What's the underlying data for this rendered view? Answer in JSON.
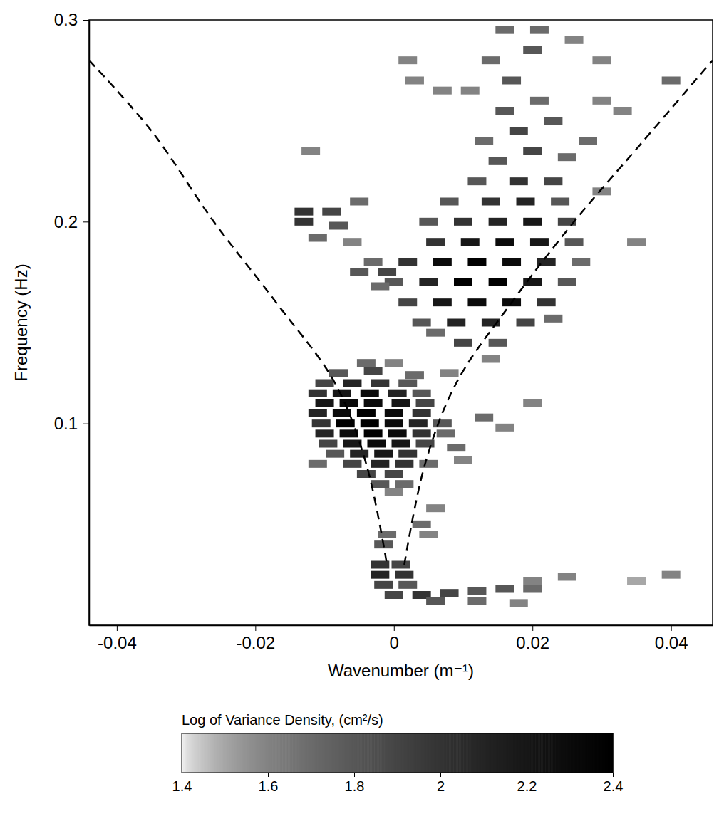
{
  "chart_data": {
    "type": "heatmap",
    "x_label": "Wavenumber (m⁻¹)",
    "y_label": "Frequency (Hz)",
    "xlim": [
      -0.044,
      0.046
    ],
    "ylim": [
      0,
      0.3
    ],
    "xticks": [
      -0.04,
      -0.02,
      0,
      0.02,
      0.04
    ],
    "yticks": [
      0.1,
      0.2,
      0.3
    ],
    "colorbar": {
      "label": "Log of Variance Density, (cm²/s)",
      "range": [
        1.4,
        2.4
      ],
      "ticks": [
        1.4,
        1.6,
        1.8,
        2,
        2.2,
        2.4
      ]
    },
    "cells": [
      [
        -0.004,
        0.13,
        1.7
      ],
      [
        0.0,
        0.13,
        1.6
      ],
      [
        -0.008,
        0.125,
        1.8
      ],
      [
        -0.003,
        0.126,
        1.9
      ],
      [
        0.003,
        0.124,
        1.7
      ],
      [
        -0.01,
        0.12,
        1.9
      ],
      [
        -0.006,
        0.12,
        2.1
      ],
      [
        -0.002,
        0.12,
        2.0
      ],
      [
        0.002,
        0.12,
        1.8
      ],
      [
        -0.011,
        0.115,
        2.0
      ],
      [
        -0.0075,
        0.115,
        2.2
      ],
      [
        -0.0035,
        0.115,
        2.3
      ],
      [
        0.0005,
        0.115,
        2.1
      ],
      [
        0.004,
        0.115,
        1.8
      ],
      [
        -0.01,
        0.11,
        2.2
      ],
      [
        -0.0065,
        0.11,
        2.3
      ],
      [
        -0.003,
        0.11,
        2.3
      ],
      [
        0.001,
        0.11,
        2.2
      ],
      [
        0.0045,
        0.11,
        1.9
      ],
      [
        -0.011,
        0.105,
        2.1
      ],
      [
        -0.0075,
        0.105,
        2.3
      ],
      [
        -0.004,
        0.105,
        2.4
      ],
      [
        0.0,
        0.105,
        2.3
      ],
      [
        0.004,
        0.105,
        2.0
      ],
      [
        -0.0105,
        0.1,
        2.0
      ],
      [
        -0.007,
        0.1,
        2.4
      ],
      [
        -0.0035,
        0.1,
        2.4
      ],
      [
        0.0,
        0.1,
        2.3
      ],
      [
        0.0035,
        0.1,
        2.1
      ],
      [
        0.007,
        0.1,
        1.8
      ],
      [
        -0.01,
        0.095,
        2.1
      ],
      [
        -0.0065,
        0.095,
        2.3
      ],
      [
        -0.003,
        0.095,
        2.4
      ],
      [
        0.0005,
        0.095,
        2.3
      ],
      [
        0.004,
        0.095,
        2.0
      ],
      [
        0.0075,
        0.095,
        1.7
      ],
      [
        -0.0095,
        0.09,
        1.9
      ],
      [
        -0.006,
        0.09,
        2.2
      ],
      [
        -0.0025,
        0.09,
        2.3
      ],
      [
        0.001,
        0.09,
        2.2
      ],
      [
        0.0045,
        0.09,
        1.9
      ],
      [
        -0.0085,
        0.085,
        1.8
      ],
      [
        -0.005,
        0.085,
        2.1
      ],
      [
        -0.0015,
        0.085,
        2.2
      ],
      [
        0.002,
        0.085,
        2.0
      ],
      [
        -0.011,
        0.08,
        1.7
      ],
      [
        -0.006,
        0.08,
        1.9
      ],
      [
        -0.002,
        0.08,
        2.1
      ],
      [
        0.0015,
        0.08,
        2.0
      ],
      [
        0.005,
        0.08,
        1.7
      ],
      [
        -0.004,
        0.075,
        1.9
      ],
      [
        0.0,
        0.075,
        1.9
      ],
      [
        -0.002,
        0.07,
        1.8
      ],
      [
        0.0015,
        0.07,
        1.7
      ],
      [
        0.0,
        0.066,
        1.6
      ],
      [
        0.009,
        0.088,
        1.7
      ],
      [
        0.01,
        0.082,
        1.6
      ],
      [
        -0.001,
        0.045,
        1.7
      ],
      [
        -0.0015,
        0.04,
        1.8
      ],
      [
        0.004,
        0.05,
        1.7
      ],
      [
        0.005,
        0.045,
        1.6
      ],
      [
        0.006,
        0.058,
        1.6
      ],
      [
        -0.002,
        0.03,
        2.0
      ],
      [
        0.001,
        0.03,
        1.9
      ],
      [
        -0.002,
        0.025,
        2.1
      ],
      [
        0.0015,
        0.025,
        2.0
      ],
      [
        -0.0015,
        0.02,
        1.9
      ],
      [
        0.002,
        0.02,
        1.8
      ],
      [
        0.0,
        0.015,
        1.9
      ],
      [
        0.004,
        0.015,
        2.0
      ],
      [
        0.008,
        0.016,
        1.9
      ],
      [
        0.012,
        0.017,
        1.8
      ],
      [
        0.016,
        0.018,
        1.8
      ],
      [
        0.02,
        0.018,
        1.7
      ],
      [
        0.006,
        0.012,
        1.8
      ],
      [
        0.012,
        0.012,
        1.7
      ],
      [
        0.018,
        0.011,
        1.6
      ],
      [
        0.02,
        0.022,
        1.6
      ],
      [
        0.025,
        0.024,
        1.6
      ],
      [
        0.04,
        0.025,
        1.6
      ],
      [
        0.035,
        0.022,
        1.5
      ],
      [
        0.01,
        0.14,
        1.9
      ],
      [
        0.015,
        0.14,
        1.8
      ],
      [
        0.006,
        0.145,
        1.7
      ],
      [
        0.004,
        0.15,
        1.8
      ],
      [
        0.009,
        0.15,
        2.1
      ],
      [
        0.014,
        0.15,
        2.1
      ],
      [
        0.019,
        0.15,
        1.9
      ],
      [
        0.023,
        0.152,
        1.7
      ],
      [
        0.002,
        0.16,
        1.9
      ],
      [
        0.007,
        0.16,
        2.2
      ],
      [
        0.012,
        0.16,
        2.3
      ],
      [
        0.017,
        0.16,
        2.3
      ],
      [
        0.022,
        0.16,
        2.0
      ],
      [
        0.0,
        0.17,
        1.8
      ],
      [
        0.005,
        0.17,
        2.1
      ],
      [
        0.01,
        0.17,
        2.4
      ],
      [
        0.015,
        0.17,
        2.4
      ],
      [
        0.02,
        0.17,
        2.2
      ],
      [
        0.025,
        0.17,
        1.8
      ],
      [
        -0.003,
        0.18,
        1.7
      ],
      [
        0.002,
        0.18,
        2.0
      ],
      [
        0.007,
        0.18,
        2.3
      ],
      [
        0.012,
        0.18,
        2.4
      ],
      [
        0.017,
        0.18,
        2.3
      ],
      [
        0.022,
        0.18,
        2.1
      ],
      [
        0.027,
        0.18,
        1.7
      ],
      [
        0.006,
        0.19,
        2.0
      ],
      [
        0.011,
        0.19,
        2.2
      ],
      [
        0.016,
        0.19,
        2.3
      ],
      [
        0.021,
        0.19,
        2.2
      ],
      [
        0.026,
        0.19,
        1.8
      ],
      [
        0.005,
        0.2,
        1.8
      ],
      [
        0.01,
        0.2,
        2.0
      ],
      [
        0.015,
        0.2,
        2.1
      ],
      [
        0.02,
        0.2,
        2.2
      ],
      [
        0.025,
        0.2,
        1.9
      ],
      [
        0.008,
        0.21,
        1.8
      ],
      [
        0.014,
        0.21,
        2.0
      ],
      [
        0.019,
        0.21,
        2.1
      ],
      [
        0.024,
        0.21,
        1.8
      ],
      [
        0.012,
        0.22,
        1.8
      ],
      [
        0.018,
        0.22,
        2.0
      ],
      [
        0.023,
        0.22,
        1.9
      ],
      [
        0.015,
        0.23,
        1.8
      ],
      [
        0.02,
        0.235,
        1.9
      ],
      [
        0.025,
        0.232,
        1.7
      ],
      [
        0.013,
        0.24,
        1.7
      ],
      [
        0.018,
        0.245,
        1.9
      ],
      [
        0.023,
        0.25,
        1.8
      ],
      [
        0.028,
        0.24,
        1.7
      ],
      [
        0.016,
        0.255,
        1.8
      ],
      [
        0.021,
        0.26,
        1.7
      ],
      [
        0.011,
        0.265,
        1.6
      ],
      [
        0.017,
        0.27,
        1.8
      ],
      [
        0.007,
        0.265,
        1.6
      ],
      [
        0.014,
        0.28,
        1.7
      ],
      [
        0.02,
        0.285,
        1.8
      ],
      [
        0.016,
        0.295,
        1.7
      ],
      [
        0.021,
        0.295,
        1.7
      ],
      [
        0.026,
        0.29,
        1.6
      ],
      [
        0.003,
        0.27,
        1.6
      ],
      [
        0.002,
        0.28,
        1.6
      ],
      [
        0.03,
        0.26,
        1.6
      ],
      [
        0.033,
        0.255,
        1.6
      ],
      [
        0.04,
        0.27,
        1.7
      ],
      [
        0.03,
        0.28,
        1.6
      ],
      [
        -0.013,
        0.205,
        2.0
      ],
      [
        -0.009,
        0.205,
        1.9
      ],
      [
        -0.013,
        0.2,
        2.0
      ],
      [
        -0.008,
        0.198,
        1.8
      ],
      [
        -0.011,
        0.192,
        1.7
      ],
      [
        -0.006,
        0.19,
        1.6
      ],
      [
        -0.005,
        0.21,
        1.7
      ],
      [
        -0.005,
        0.175,
        1.8
      ],
      [
        -0.001,
        0.175,
        1.9
      ],
      [
        -0.002,
        0.168,
        1.7
      ],
      [
        0.014,
        0.132,
        1.6
      ],
      [
        0.013,
        0.103,
        1.7
      ],
      [
        0.016,
        0.098,
        1.6
      ],
      [
        0.02,
        0.11,
        1.6
      ],
      [
        0.008,
        0.125,
        1.6
      ],
      [
        -0.012,
        0.235,
        1.6
      ],
      [
        0.035,
        0.19,
        1.6
      ],
      [
        0.03,
        0.215,
        1.6
      ]
    ],
    "series": [
      {
        "x": [
          -0.044,
          -0.035,
          -0.026,
          -0.017,
          -0.0085,
          -0.004,
          -0.001
        ],
        "values": [
          0.28,
          0.245,
          0.2,
          0.16,
          0.12,
          0.08,
          0.03
        ],
        "line_style": "dashed",
        "color": "#000000"
      },
      {
        "x": [
          0.0015,
          0.0045,
          0.009,
          0.017,
          0.026,
          0.036,
          0.046
        ],
        "values": [
          0.03,
          0.08,
          0.12,
          0.16,
          0.2,
          0.24,
          0.28
        ],
        "line_style": "dashed",
        "color": "#000000"
      }
    ]
  }
}
